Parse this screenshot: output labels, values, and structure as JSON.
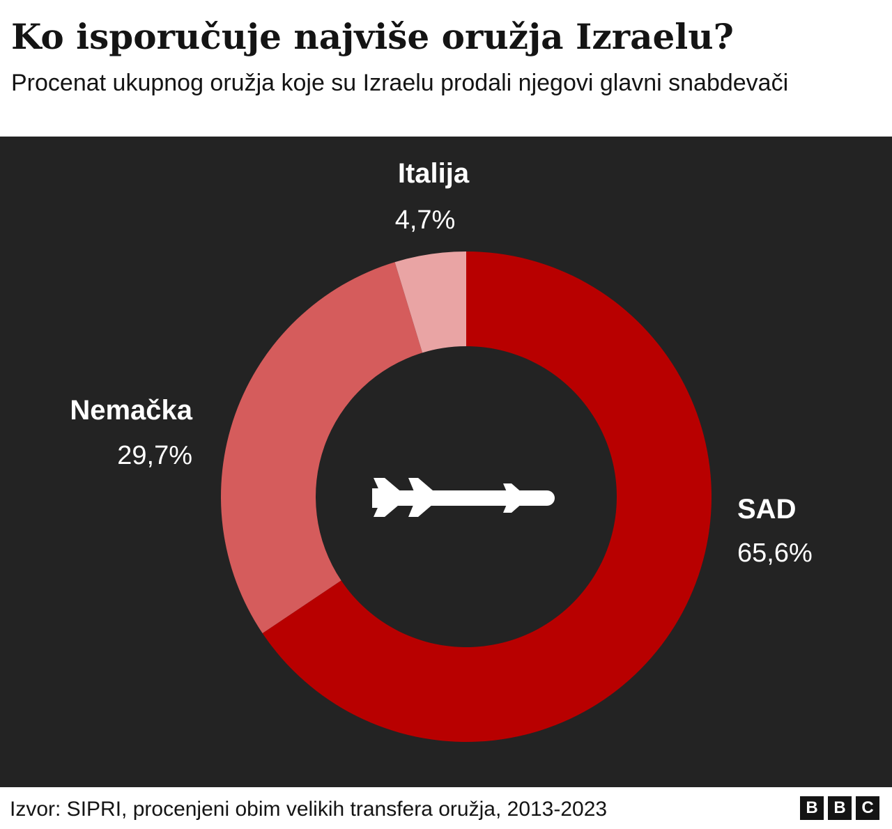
{
  "header": {
    "title": "Ko isporučuje najviše oružja Izraelu?",
    "subtitle": "Procenat ukupnog oružja koje su Izraelu prodali njegovi glavni snabdevači"
  },
  "chart_data": {
    "type": "pie",
    "variant": "donut",
    "slices": [
      {
        "name": "SAD",
        "value": 65.6,
        "value_label": "65,6%",
        "color": "#b80000"
      },
      {
        "name": "Nemačka",
        "value": 29.7,
        "value_label": "29,7%",
        "color": "#d55c5c"
      },
      {
        "name": "Italija",
        "value": 4.7,
        "value_label": "4,7%",
        "color": "#e9a4a4"
      }
    ],
    "start": "top",
    "direction": "clockwise",
    "center_icon": "missile-icon",
    "background_color": "#232323"
  },
  "footer": {
    "source": "Izvor: SIPRI, procenjeni obim velikih transfera oružja, 2013-2023",
    "logo": [
      "B",
      "B",
      "C"
    ]
  }
}
